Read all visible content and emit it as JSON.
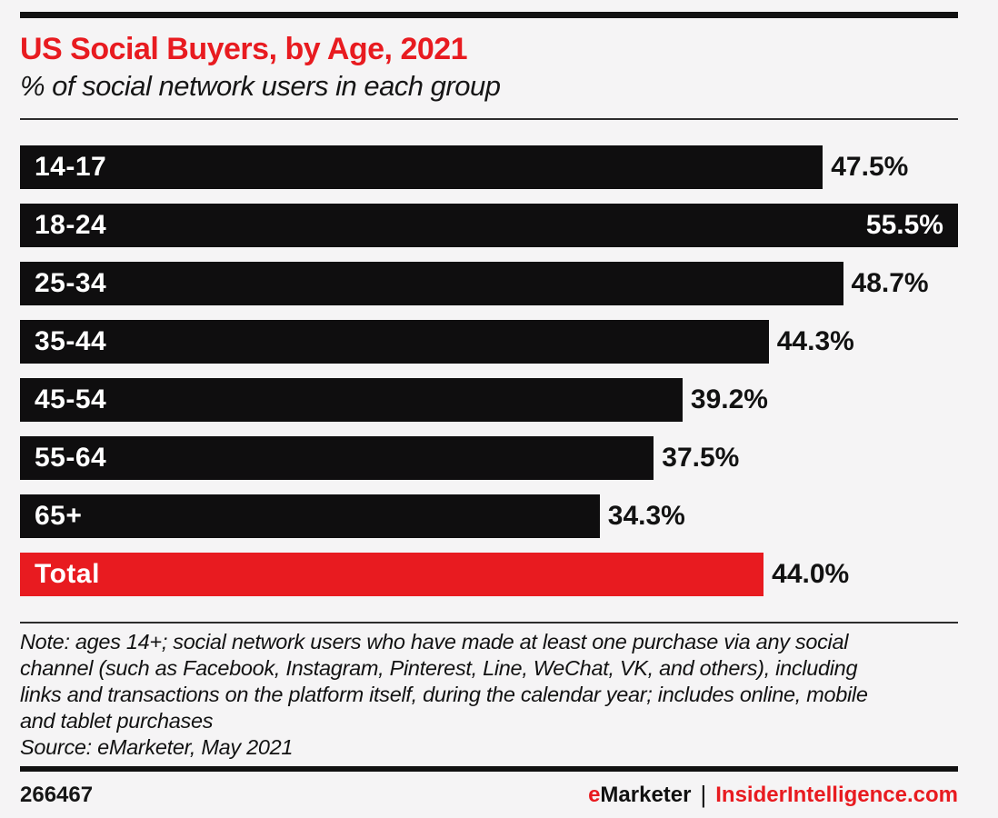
{
  "chart_data": {
    "type": "bar",
    "orientation": "horizontal",
    "title": "US Social Buyers, by Age, 2021",
    "subtitle": "% of social network users in each group",
    "categories": [
      "14-17",
      "18-24",
      "25-34",
      "35-44",
      "45-54",
      "55-64",
      "65+",
      "Total"
    ],
    "values": [
      47.5,
      55.5,
      48.7,
      44.3,
      39.2,
      37.5,
      34.3,
      44.0
    ],
    "value_labels": [
      "47.5%",
      "55.5%",
      "48.7%",
      "44.3%",
      "39.2%",
      "37.5%",
      "34.3%",
      "44.0%"
    ],
    "value_label_placement": [
      "outside",
      "inside",
      "outside",
      "outside",
      "outside",
      "outside",
      "outside",
      "outside"
    ],
    "bar_color_keys": [
      "black",
      "black",
      "black",
      "black",
      "black",
      "black",
      "black",
      "red"
    ],
    "xlim": [
      0,
      55.5
    ],
    "grid": false,
    "legend": false
  },
  "note": {
    "lines": [
      "Note: ages 14+; social network users who have made at least one purchase via any social",
      "channel (such as Facebook, Instagram, Pinterest, Line, WeChat, VK, and others), including",
      "links and transactions on the platform itself, during the calendar year; includes online, mobile",
      "and tablet purchases"
    ]
  },
  "source": "Source: eMarketer, May 2021",
  "footer": {
    "chart_id": "266467",
    "brand_e": "e",
    "brand_rest": "Marketer",
    "separator": "|",
    "site": "InsiderIntelligence.com"
  },
  "colors": {
    "accent_red": "#e81b20",
    "bar_black": "#0f0e0f",
    "background": "#f5f4f5",
    "rule_black": "#111111"
  }
}
